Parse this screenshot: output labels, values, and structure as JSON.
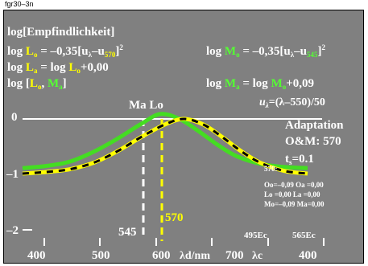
{
  "header_code": "fgr30–3n",
  "texts": {
    "title": "log[Empfindlichkeit]",
    "fl_lhs": "log",
    "fl_L": "L",
    "fl_o": "o",
    "fl_eq": " = –0,35[u",
    "fl_lam": "λ",
    "fl_minus_u": "–u",
    "fl_570": "570",
    "fl_close": "]",
    "fl_sq": "2",
    "fr_lhs": "log",
    "fr_M": "M",
    "fr_o": "o",
    "fr_eq": " = –0,35[u",
    "fr_lam": "λ",
    "fr_minus_u": "–u",
    "fr_545": "545",
    "fr_close": "]",
    "fr_sq": "2",
    "fl2_lhs": "log",
    "fl2_L": "L",
    "fl2_a": "a",
    "fl2_mid": " = log ",
    "fl2_L2": "L",
    "fl2_o": "o",
    "fl2_rest": "+0,00",
    "fr2_lhs": "log",
    "fr2_M": "M",
    "fr2_a": "a",
    "fr2_mid": " = log ",
    "fr2_M2": "M",
    "fr2_o": "o",
    "fr2_rest": "+0,09",
    "fl3_open": "log [",
    "fl3_L": "L",
    "fl3_o": "o",
    "fl3_comma": ", ",
    "fl3_M": "M",
    "fl3_a": "a",
    "fl3_close": "]",
    "u_def_u": "u",
    "u_def_lam": "λ",
    "u_def_rest": "=(λ–550)/50",
    "ma_lo": "Ma Lo",
    "adaptation": "Adaptation",
    "om": "O&M: 570",
    "ts_t": "t",
    "ts_s": "s",
    "ts_val": "=0.1",
    "small_570": "570:",
    "s1": "Oo=–0,09  Oa =0,00",
    "s2": "Lo =0,00   La =0,00",
    "s3": "Mo=–0,09  Ma=0,00",
    "marker_545": "545",
    "marker_570": "570",
    "ec_495": "495Ec",
    "ec_565": "565Ec",
    "xlabel_unit": "λd/nm",
    "x_700": "700",
    "x_lc": "λc",
    "x_400b": "400"
  },
  "colors": {
    "frame": "#808080",
    "text": "#ffffff",
    "L_curve": "#ffff00",
    "M_curve": "#44dd22",
    "L_label": "#ffff00",
    "M_label": "#55ff33",
    "dash_545": "#ffffff",
    "dash_570": "#ffff00"
  },
  "chart_data": {
    "type": "line",
    "xlabel": "λd/nm",
    "ylabel": "log[Empfindlichkeit]",
    "xlim": [
      400,
      700
    ],
    "ylim": [
      -2.3,
      0.3
    ],
    "x_ticks": [
      400,
      500,
      600,
      700
    ],
    "y_ticks": [
      0,
      -1,
      -2
    ],
    "series": [
      {
        "name": "Lo",
        "peak": 570,
        "formula": "log Lo = -0,35[uλ-u570]^2",
        "floor": -1.0,
        "x": [
          400,
          425,
          450,
          475,
          500,
          525,
          550,
          570,
          590,
          610,
          630,
          650,
          675,
          700
        ],
        "y": [
          -1.0,
          -0.97,
          -0.92,
          -0.8,
          -0.59,
          -0.33,
          -0.1,
          0.0,
          -0.1,
          -0.33,
          -0.59,
          -0.8,
          -0.95,
          -1.0
        ]
      },
      {
        "name": "Mo",
        "peak": 545,
        "formula": "log Mo = -0,35[uλ-u545]^2",
        "offset": 0.09,
        "floor": -0.9,
        "x": [
          400,
          425,
          450,
          475,
          500,
          525,
          545,
          565,
          585,
          605,
          625,
          650,
          675,
          700
        ],
        "y": [
          -0.9,
          -0.86,
          -0.78,
          -0.6,
          -0.36,
          -0.09,
          0.09,
          0.0,
          -0.22,
          -0.47,
          -0.68,
          -0.82,
          -0.88,
          -0.9
        ]
      },
      {
        "name": "black-dashed",
        "x": [
          400,
          425,
          450,
          475,
          500,
          525,
          550,
          570,
          590,
          610,
          630,
          650,
          675,
          700
        ],
        "y": [
          -1.0,
          -0.97,
          -0.92,
          -0.8,
          -0.59,
          -0.33,
          -0.1,
          0.0,
          -0.1,
          -0.33,
          -0.59,
          -0.8,
          -0.95,
          -1.0
        ]
      }
    ],
    "markers": [
      {
        "x": 545,
        "label": "545",
        "color": "#ffffff"
      },
      {
        "x": 570,
        "label": "570",
        "color": "#ffff00"
      }
    ],
    "ec_labels": [
      "495Ec",
      "565Ec"
    ]
  }
}
